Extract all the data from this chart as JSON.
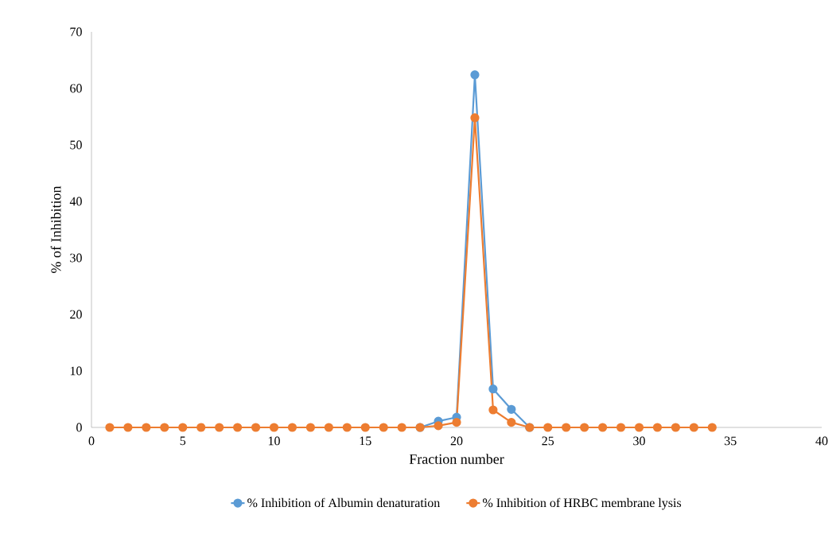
{
  "chart_data": {
    "type": "line",
    "xlabel": "Fraction number",
    "ylabel": "% of Inhibition",
    "xlim": [
      0,
      40
    ],
    "xticks": [
      0,
      5,
      10,
      15,
      20,
      25,
      30,
      35,
      40
    ],
    "ylim": [
      0,
      70
    ],
    "yticks": [
      0,
      10,
      20,
      30,
      40,
      50,
      60,
      70
    ],
    "x": [
      1,
      2,
      3,
      4,
      5,
      6,
      7,
      8,
      9,
      10,
      11,
      12,
      13,
      14,
      15,
      16,
      17,
      18,
      19,
      20,
      21,
      22,
      23,
      24,
      25,
      26,
      27,
      28,
      29,
      30,
      31,
      32,
      33,
      34
    ],
    "marker": "circle",
    "legend": "bottom",
    "grid": false,
    "series": [
      {
        "name": "% Inhibition of Albumin denaturation",
        "color": "#5b9bd5",
        "values": [
          null,
          null,
          null,
          null,
          null,
          null,
          null,
          null,
          null,
          null,
          null,
          null,
          null,
          null,
          null,
          null,
          null,
          0,
          1.1,
          1.8,
          62.4,
          6.8,
          3.2,
          0,
          null,
          null,
          null,
          null,
          null,
          null,
          null,
          null,
          null,
          null
        ]
      },
      {
        "name": "% Inhibition of HRBC membrane lysis",
        "color": "#ed7d31",
        "values": [
          0,
          0,
          0,
          0,
          0,
          0,
          0,
          0,
          0,
          0,
          0,
          0,
          0,
          0,
          0,
          0,
          0,
          0,
          0.3,
          0.9,
          54.8,
          3.1,
          0.9,
          0,
          0,
          0,
          0,
          0,
          0,
          0,
          0,
          0,
          0,
          0
        ]
      }
    ]
  }
}
